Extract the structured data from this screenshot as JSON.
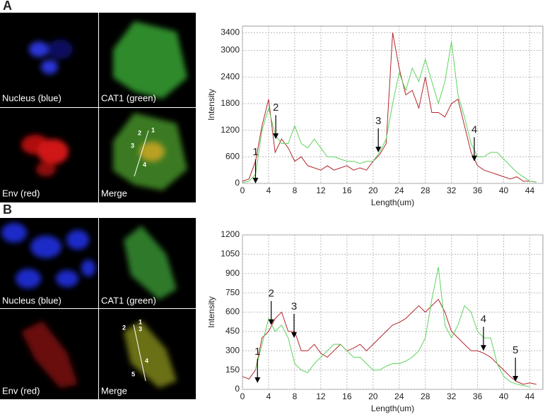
{
  "panels": [
    {
      "label": "A",
      "images": [
        "Nucleus (blue)",
        "CAT1 (green)",
        "Env (red)",
        "Merge"
      ],
      "merge_marks": [
        "1",
        "2",
        "3",
        "4"
      ]
    },
    {
      "label": "B",
      "images": [
        "Nucleus (blue)",
        "CAT1 (green)",
        "Env (red)",
        "Merge"
      ],
      "merge_marks": [
        "1",
        "2",
        "3",
        "4",
        "5"
      ]
    }
  ],
  "chart_data": [
    {
      "type": "line",
      "xlabel": "Length(um)",
      "ylabel": "Intensity",
      "x": [
        0,
        1,
        2,
        3,
        4,
        5,
        6,
        7,
        8,
        9,
        10,
        11,
        12,
        13,
        14,
        15,
        16,
        17,
        18,
        19,
        20,
        21,
        22,
        23,
        24,
        25,
        26,
        27,
        28,
        29,
        30,
        31,
        32,
        33,
        34,
        35,
        36,
        37,
        38,
        39,
        40,
        41,
        42,
        43,
        44,
        45
      ],
      "series": [
        {
          "color": "#b3262b",
          "values": [
            50,
            100,
            500,
            1300,
            1900,
            700,
            1000,
            800,
            500,
            600,
            400,
            350,
            300,
            400,
            300,
            350,
            400,
            300,
            350,
            300,
            500,
            650,
            900,
            3400,
            2600,
            2000,
            2100,
            1700,
            2400,
            1600,
            1600,
            1500,
            1800,
            1900,
            1300,
            700,
            400,
            300,
            250,
            200,
            150,
            100,
            150,
            50,
            50,
            30
          ]
        },
        {
          "color": "#5fd35f",
          "values": [
            20,
            50,
            200,
            1200,
            1700,
            1100,
            900,
            900,
            1300,
            900,
            800,
            1000,
            800,
            600,
            600,
            550,
            500,
            500,
            450,
            500,
            500,
            700,
            1000,
            1800,
            2500,
            2100,
            2600,
            2300,
            2800,
            2300,
            1800,
            2300,
            3200,
            2000,
            1500,
            900,
            600,
            600,
            700,
            700,
            550,
            400,
            250,
            150,
            50,
            30
          ]
        }
      ],
      "xlim": [
        0,
        46
      ],
      "ylim": [
        0,
        3550
      ],
      "xticks": [
        0,
        4,
        8,
        12,
        16,
        20,
        24,
        28,
        32,
        36,
        40,
        44
      ],
      "yticks": [
        0,
        600,
        1200,
        1800,
        2400,
        3000,
        3400
      ],
      "grid": true,
      "annotations": [
        {
          "text": "1",
          "x": 2,
          "y": 0
        },
        {
          "text": "2",
          "x": 5.1,
          "y": 1000
        },
        {
          "text": "3",
          "x": 20.8,
          "y": 700
        },
        {
          "text": "4",
          "x": 35.5,
          "y": 500
        }
      ]
    },
    {
      "type": "line",
      "xlabel": "Length(um)",
      "ylabel": "Intensity",
      "x": [
        0,
        1,
        2,
        3,
        4,
        5,
        6,
        7,
        8,
        9,
        10,
        11,
        12,
        13,
        14,
        15,
        16,
        17,
        18,
        19,
        20,
        21,
        22,
        23,
        24,
        25,
        26,
        27,
        28,
        29,
        30,
        31,
        32,
        33,
        34,
        35,
        36,
        37,
        38,
        39,
        40,
        41,
        42,
        43,
        44,
        45
      ],
      "series": [
        {
          "color": "#b3262b",
          "values": [
            100,
            80,
            150,
            400,
            450,
            550,
            600,
            450,
            450,
            300,
            300,
            350,
            280,
            250,
            300,
            350,
            300,
            320,
            350,
            300,
            350,
            400,
            450,
            500,
            520,
            550,
            600,
            650,
            600,
            650,
            700,
            600,
            450,
            400,
            350,
            300,
            300,
            280,
            250,
            200,
            150,
            100,
            60,
            40,
            50,
            40
          ]
        },
        {
          "color": "#5fd35f",
          "values": [
            null,
            null,
            150,
            350,
            550,
            450,
            500,
            400,
            200,
            150,
            130,
            200,
            250,
            300,
            350,
            350,
            300,
            250,
            250,
            200,
            150,
            150,
            180,
            200,
            200,
            220,
            250,
            300,
            400,
            700,
            950,
            500,
            400,
            500,
            650,
            600,
            450,
            400,
            400,
            200,
            100,
            60,
            40,
            30,
            20,
            null
          ]
        }
      ],
      "xlim": [
        0,
        46
      ],
      "ylim": [
        0,
        1200
      ],
      "xticks": [
        0,
        4,
        8,
        12,
        16,
        20,
        24,
        28,
        32,
        36,
        40,
        44
      ],
      "yticks": [
        0,
        150,
        300,
        450,
        600,
        750,
        900,
        1050,
        1200
      ],
      "grid": true,
      "annotations": [
        {
          "text": "1",
          "x": 2.3,
          "y": 50
        },
        {
          "text": "2",
          "x": 4.4,
          "y": 500
        },
        {
          "text": "3",
          "x": 7.9,
          "y": 400
        },
        {
          "text": "4",
          "x": 36.9,
          "y": 300
        },
        {
          "text": "5",
          "x": 41.8,
          "y": 60
        }
      ]
    }
  ]
}
